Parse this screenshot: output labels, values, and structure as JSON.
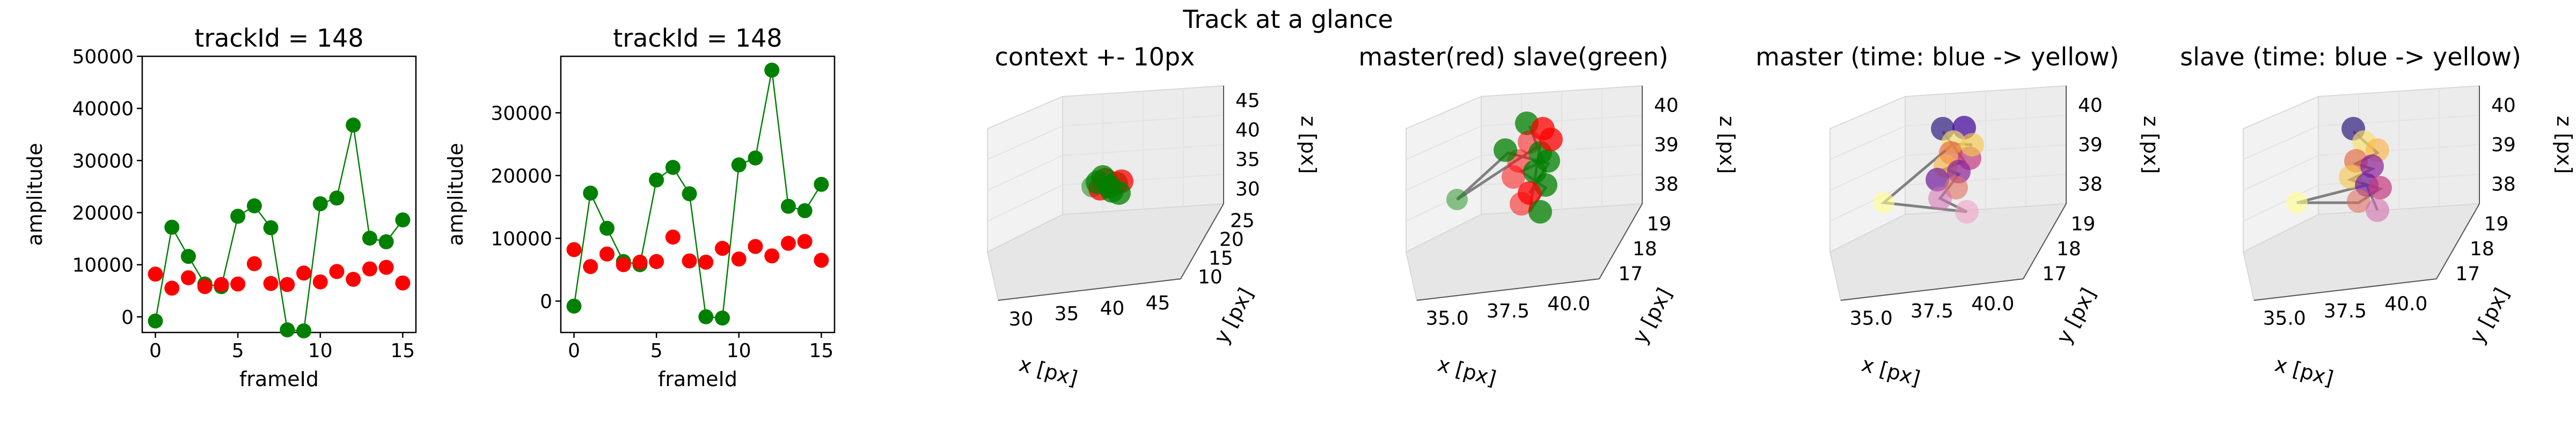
{
  "suptitle": "Track at a glance",
  "colors": {
    "red": "#ff0000",
    "green": "#008000",
    "link": "#808080"
  },
  "chart_data": [
    {
      "type": "line",
      "title": "trackId = 148",
      "xlabel": "frameId",
      "ylabel": "amplitude",
      "xlim": [
        -0.8,
        15.8
      ],
      "ylim": [
        -3000,
        50000
      ],
      "xticks": [
        "0",
        "5",
        "10",
        "15"
      ],
      "yticks": [
        "0",
        "10000",
        "20000",
        "30000",
        "40000",
        "50000"
      ],
      "x": [
        0,
        1,
        2,
        3,
        4,
        5,
        6,
        7,
        8,
        9,
        10,
        11,
        12,
        13,
        14,
        15
      ],
      "series": [
        {
          "name": "green",
          "color": "#008000",
          "line": true,
          "values": [
            -800,
            17200,
            11600,
            6300,
            5800,
            19300,
            21300,
            17100,
            -2500,
            -2700,
            21700,
            22800,
            36800,
            15100,
            14400,
            18600
          ]
        },
        {
          "name": "red",
          "color": "#ff0000",
          "line": false,
          "values": [
            8200,
            5500,
            7500,
            5800,
            6200,
            6300,
            10200,
            6400,
            6200,
            8400,
            6700,
            8700,
            7200,
            9200,
            9500,
            6500
          ]
        }
      ]
    },
    {
      "type": "line",
      "title": "trackId = 148",
      "xlabel": "frameId",
      "ylabel": "amplitude",
      "xlim": [
        -0.8,
        15.8
      ],
      "ylim": [
        -5000,
        39000
      ],
      "xticks": [
        "0",
        "5",
        "10",
        "15"
      ],
      "yticks": [
        "0",
        "10000",
        "20000",
        "30000"
      ],
      "x": [
        0,
        1,
        2,
        3,
        4,
        5,
        6,
        7,
        8,
        9,
        10,
        11,
        12,
        13,
        14,
        15
      ],
      "series": [
        {
          "name": "green",
          "color": "#008000",
          "line": true,
          "values": [
            -800,
            17200,
            11600,
            6300,
            5800,
            19300,
            21300,
            17100,
            -2500,
            -2700,
            21700,
            22800,
            36800,
            15100,
            14400,
            18600
          ]
        },
        {
          "name": "red",
          "color": "#ff0000",
          "line": false,
          "values": [
            8200,
            5500,
            7500,
            5800,
            6200,
            6300,
            10200,
            6400,
            6200,
            8400,
            6700,
            8700,
            7200,
            9200,
            9500,
            6500
          ]
        }
      ]
    },
    {
      "type": "scatter",
      "title": "context +- 10px",
      "xlabel": "x [px]",
      "ylabel": "y [px]",
      "zlabel": "z [px]",
      "xticks": [
        "30",
        "35",
        "40",
        "45"
      ],
      "yticks": [
        "10",
        "15",
        "20",
        "25"
      ],
      "zticks": [
        "30",
        "35",
        "40",
        "45"
      ]
    },
    {
      "type": "scatter",
      "title": "master(red) slave(green)",
      "xlabel": "x [px]",
      "ylabel": "y [px]",
      "zlabel": "z [px]",
      "xticks": [
        "35.0",
        "37.5",
        "40.0"
      ],
      "yticks": [
        "17",
        "18",
        "19"
      ],
      "zticks": [
        "38",
        "39",
        "40"
      ]
    },
    {
      "type": "scatter",
      "title": "master (time: blue -> yellow)",
      "xlabel": "x [px]",
      "ylabel": "y [px]",
      "zlabel": "z [px]",
      "xticks": [
        "35.0",
        "37.5",
        "40.0"
      ],
      "yticks": [
        "17",
        "18",
        "19"
      ],
      "zticks": [
        "38",
        "39",
        "40"
      ]
    },
    {
      "type": "scatter",
      "title": "slave (time: blue -> yellow)",
      "xlabel": "x [px]",
      "ylabel": "y [px]",
      "zlabel": "z [px]",
      "xticks": [
        "35.0",
        "37.5",
        "40.0"
      ],
      "yticks": [
        "17",
        "18",
        "19"
      ],
      "zticks": [
        "38",
        "39",
        "40"
      ]
    }
  ]
}
